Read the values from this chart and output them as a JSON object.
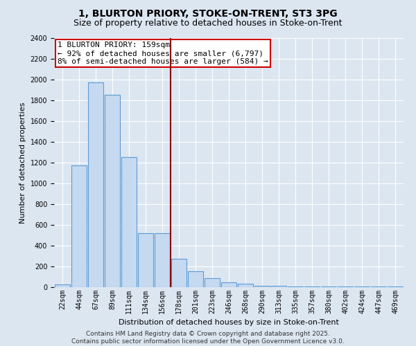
{
  "title": "1, BLURTON PRIORY, STOKE-ON-TRENT, ST3 3PG",
  "subtitle": "Size of property relative to detached houses in Stoke-on-Trent",
  "xlabel": "Distribution of detached houses by size in Stoke-on-Trent",
  "ylabel": "Number of detached properties",
  "categories": [
    "22sqm",
    "44sqm",
    "67sqm",
    "89sqm",
    "111sqm",
    "134sqm",
    "156sqm",
    "178sqm",
    "201sqm",
    "223sqm",
    "246sqm",
    "268sqm",
    "290sqm",
    "313sqm",
    "335sqm",
    "357sqm",
    "380sqm",
    "402sqm",
    "424sqm",
    "447sqm",
    "469sqm"
  ],
  "values": [
    25,
    1175,
    1975,
    1850,
    1250,
    520,
    520,
    275,
    155,
    85,
    45,
    35,
    15,
    15,
    10,
    5,
    5,
    5,
    5,
    5,
    5
  ],
  "bar_color": "#c5d9f0",
  "bar_edge_color": "#5b9bd5",
  "background_color": "#dce6f1",
  "plot_bg_color": "#dce6f1",
  "grid_color": "#ffffff",
  "vline_x": 6.5,
  "vline_color": "#8b0000",
  "annotation_text": "1 BLURTON PRIORY: 159sqm\n← 92% of detached houses are smaller (6,797)\n8% of semi-detached houses are larger (584) →",
  "annotation_box_color": "#cc0000",
  "ylim": [
    0,
    2400
  ],
  "yticks": [
    0,
    200,
    400,
    600,
    800,
    1000,
    1200,
    1400,
    1600,
    1800,
    2000,
    2200,
    2400
  ],
  "footer_line1": "Contains HM Land Registry data © Crown copyright and database right 2025.",
  "footer_line2": "Contains public sector information licensed under the Open Government Licence v3.0.",
  "title_fontsize": 10,
  "subtitle_fontsize": 9,
  "xlabel_fontsize": 8,
  "ylabel_fontsize": 8,
  "tick_fontsize": 7,
  "annotation_fontsize": 8,
  "footer_fontsize": 6.5
}
